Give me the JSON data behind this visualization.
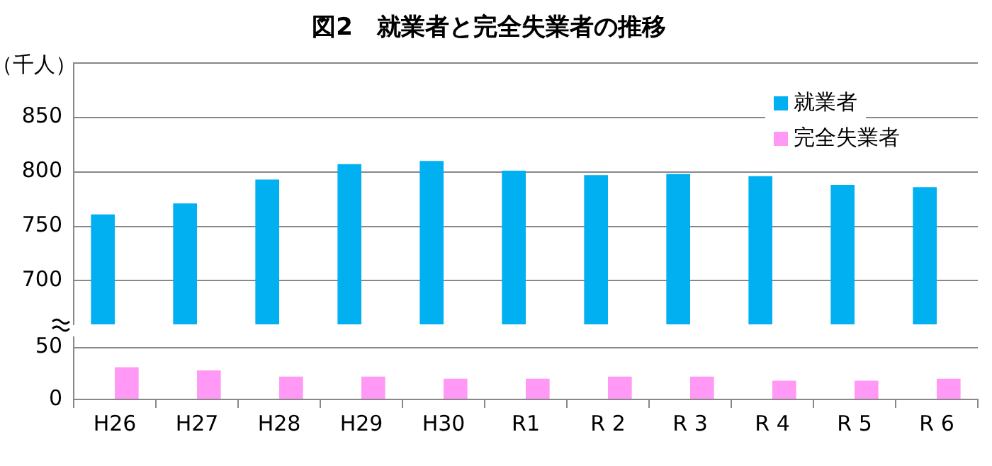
{
  "chart_data": [
    {
      "type": "bar",
      "title": "図2　就業者と完全失業者の推移",
      "annotations": [
        "（千人）"
      ],
      "categories": [
        null,
        null,
        null,
        null,
        null,
        null,
        null,
        null,
        null,
        null,
        null
      ],
      "series": [
        {
          "name": "就業者",
          "color": "#00b0f0",
          "values": [
            761,
            771,
            793,
            807,
            810,
            801,
            797,
            798,
            796,
            788,
            786
          ]
        }
      ],
      "ylim": [
        660,
        900
      ],
      "yticks": [
        700,
        750,
        800,
        850,
        {
          "value": 900,
          "label": null
        }
      ],
      "tick_labels": "y",
      "grid": "y",
      "legend": "top right"
    },
    {
      "type": "bar",
      "categories": [
        "H26",
        "H27",
        "H28",
        "H29",
        "H30",
        "R1",
        "R 2",
        "R 3",
        "R 4",
        "R 5",
        "R 6"
      ],
      "series": [
        {
          "name": "完全失業者",
          "color": "#ff99f5",
          "values": [
            31,
            28,
            22,
            22,
            20,
            20,
            22,
            22,
            18,
            18,
            20
          ]
        }
      ],
      "ylim": [
        0,
        60
      ],
      "yticks": [
        0,
        50
      ],
      "grid": "y",
      "legend": "top right"
    }
  ]
}
